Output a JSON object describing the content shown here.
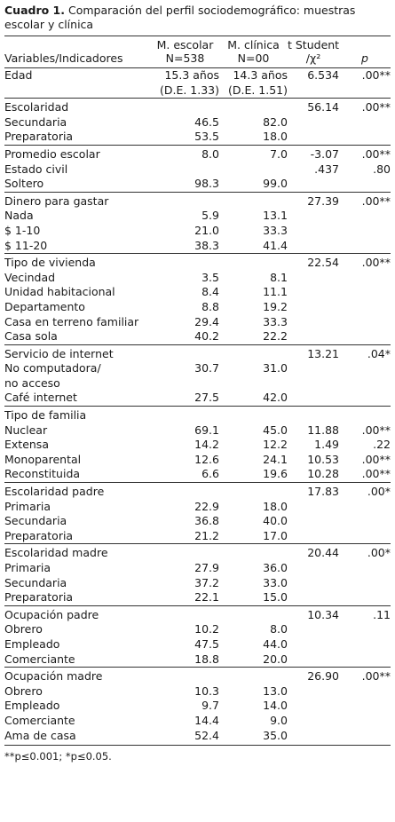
{
  "caption": {
    "label": "Cuadro 1.",
    "text": "Comparación del perfil sociodemográfico: muestras escolar y clínica"
  },
  "header": {
    "col1": "Variables/Indicadores",
    "col2_line1": "M. escolar",
    "col2_line2": "N=538",
    "col3_line1": "M. clínica",
    "col3_line2": "N=00",
    "col4_line1": "t Student",
    "col4_line2": "/χ²",
    "col5": "p"
  },
  "groups": [
    {
      "label": "Edad",
      "escolar": "15.3 años",
      "clinica": "14.3 años",
      "stat": "6.534",
      "p": ".00**",
      "extra": {
        "escolar": "(D.E. 1.33)",
        "clinica": "(D.E. 1.51)"
      },
      "rows": []
    },
    {
      "label": "Escolaridad",
      "escolar": "",
      "clinica": "",
      "stat": "56.14",
      "p": ".00**",
      "rows": [
        {
          "label": "Secundaria",
          "escolar": "46.5",
          "clinica": "82.0"
        },
        {
          "label": "Preparatoria",
          "escolar": "53.5",
          "clinica": "18.0"
        }
      ]
    },
    {
      "label": "Promedio escolar",
      "escolar": "8.0",
      "clinica": "7.0",
      "stat": "-3.07",
      "p": ".00**",
      "rows": []
    },
    {
      "label": "Estado civil",
      "escolar": "",
      "clinica": "",
      "stat": ".437",
      "p": ".80",
      "noborder": true,
      "rows": [
        {
          "label": "Soltero",
          "escolar": "98.3",
          "clinica": "99.0"
        }
      ]
    },
    {
      "label": "Dinero para gastar",
      "escolar": "",
      "clinica": "",
      "stat": "27.39",
      "p": ".00**",
      "rows": [
        {
          "label": "Nada",
          "escolar": "5.9",
          "clinica": "13.1"
        },
        {
          "label": "$ 1-10",
          "escolar": "21.0",
          "clinica": "33.3"
        },
        {
          "label": "$ 11-20",
          "escolar": "38.3",
          "clinica": "41.4"
        }
      ]
    },
    {
      "label": "Tipo de vivienda",
      "escolar": "",
      "clinica": "",
      "stat": "22.54",
      "p": ".00**",
      "rows": [
        {
          "label": "Vecindad",
          "escolar": "3.5",
          "clinica": "8.1"
        },
        {
          "label": "Unidad habitacional",
          "escolar": "8.4",
          "clinica": "11.1"
        },
        {
          "label": "Departamento",
          "escolar": "8.8",
          "clinica": "19.2"
        },
        {
          "label": "Casa en terreno familiar",
          "escolar": "29.4",
          "clinica": "33.3"
        },
        {
          "label": "Casa sola",
          "escolar": "40.2",
          "clinica": "22.2"
        }
      ]
    },
    {
      "label": "Servicio de internet",
      "escolar": "",
      "clinica": "",
      "stat": "13.21",
      "p": ".04*",
      "rows": [
        {
          "label": "No computadora/",
          "escolar": "30.7",
          "clinica": "31.0"
        },
        {
          "label": "no acceso",
          "escolar": "",
          "clinica": ""
        },
        {
          "label": "Café internet",
          "escolar": "27.5",
          "clinica": "42.0"
        }
      ]
    },
    {
      "label": "Tipo de familia",
      "escolar": "",
      "clinica": "",
      "stat": "",
      "p": "",
      "rows": [
        {
          "label": "Nuclear",
          "escolar": "69.1",
          "clinica": "45.0",
          "stat": "11.88",
          "p": ".00**"
        },
        {
          "label": "Extensa",
          "escolar": "14.2",
          "clinica": "12.2",
          "stat": "1.49",
          "p": ".22"
        },
        {
          "label": "Monoparental",
          "escolar": "12.6",
          "clinica": "24.1",
          "stat": "10.53",
          "p": ".00**"
        },
        {
          "label": "Reconstituida",
          "escolar": "6.6",
          "clinica": "19.6",
          "stat": "10.28",
          "p": ".00**"
        }
      ]
    },
    {
      "label": "Escolaridad padre",
      "escolar": "",
      "clinica": "",
      "stat": "17.83",
      "p": ".00*",
      "rows": [
        {
          "label": "Primaria",
          "escolar": "22.9",
          "clinica": "18.0"
        },
        {
          "label": "Secundaria",
          "escolar": "36.8",
          "clinica": "40.0"
        },
        {
          "label": "Preparatoria",
          "escolar": "21.2",
          "clinica": "17.0"
        }
      ]
    },
    {
      "label": "Escolaridad madre",
      "escolar": "",
      "clinica": "",
      "stat": "20.44",
      "p": ".00*",
      "rows": [
        {
          "label": "Primaria",
          "escolar": "27.9",
          "clinica": "36.0"
        },
        {
          "label": "Secundaria",
          "escolar": "37.2",
          "clinica": "33.0"
        },
        {
          "label": "Preparatoria",
          "escolar": "22.1",
          "clinica": "15.0"
        }
      ]
    },
    {
      "label": "Ocupación  padre",
      "escolar": "",
      "clinica": "",
      "stat": "10.34",
      "p": ".11",
      "rows": [
        {
          "label": "Obrero",
          "escolar": "10.2",
          "clinica": "8.0"
        },
        {
          "label": "Empleado",
          "escolar": "47.5",
          "clinica": "44.0"
        },
        {
          "label": "Comerciante",
          "escolar": "18.8",
          "clinica": "20.0"
        }
      ]
    },
    {
      "label": "Ocupación  madre",
      "escolar": "",
      "clinica": "",
      "stat": "26.90",
      "p": ".00**",
      "rows": [
        {
          "label": "Obrero",
          "escolar": "10.3",
          "clinica": "13.0"
        },
        {
          "label": "Empleado",
          "escolar": "9.7",
          "clinica": "14.0"
        },
        {
          "label": "Comerciante",
          "escolar": "14.4",
          "clinica": "9.0"
        },
        {
          "label": "Ama de casa",
          "escolar": "52.4",
          "clinica": "35.0"
        }
      ]
    }
  ],
  "note": "**p≤0.001; *p≤0.05."
}
